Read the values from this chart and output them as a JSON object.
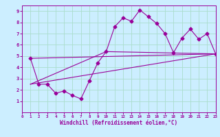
{
  "xlabel": "Windchill (Refroidissement éolien,°C)",
  "ylabel": "",
  "background_color": "#cceeff",
  "line_color": "#990099",
  "grid_color": "#aaddcc",
  "xlim": [
    0,
    23
  ],
  "ylim": [
    0,
    9.5
  ],
  "xticks": [
    0,
    1,
    2,
    3,
    4,
    5,
    6,
    7,
    8,
    9,
    10,
    11,
    12,
    13,
    14,
    15,
    16,
    17,
    18,
    19,
    20,
    21,
    22,
    23
  ],
  "yticks": [
    1,
    2,
    3,
    4,
    5,
    6,
    7,
    8,
    9
  ],
  "series1_x": [
    1,
    2,
    3,
    4,
    5,
    6,
    7,
    8,
    9,
    10,
    11,
    12,
    13,
    14,
    15,
    16,
    17,
    18,
    19,
    20,
    21,
    22,
    23
  ],
  "series1_y": [
    4.8,
    2.5,
    2.5,
    1.7,
    1.9,
    1.5,
    1.2,
    2.8,
    4.4,
    5.4,
    7.6,
    8.4,
    8.1,
    9.1,
    8.5,
    7.9,
    7.0,
    5.3,
    6.6,
    7.4,
    6.5,
    7.0,
    5.2
  ],
  "series2_x": [
    1,
    23
  ],
  "series2_y": [
    4.8,
    5.2
  ],
  "series3_x": [
    1,
    10,
    23
  ],
  "series3_y": [
    2.5,
    5.4,
    5.2
  ],
  "series4_x": [
    1,
    23
  ],
  "series4_y": [
    2.5,
    5.2
  ]
}
